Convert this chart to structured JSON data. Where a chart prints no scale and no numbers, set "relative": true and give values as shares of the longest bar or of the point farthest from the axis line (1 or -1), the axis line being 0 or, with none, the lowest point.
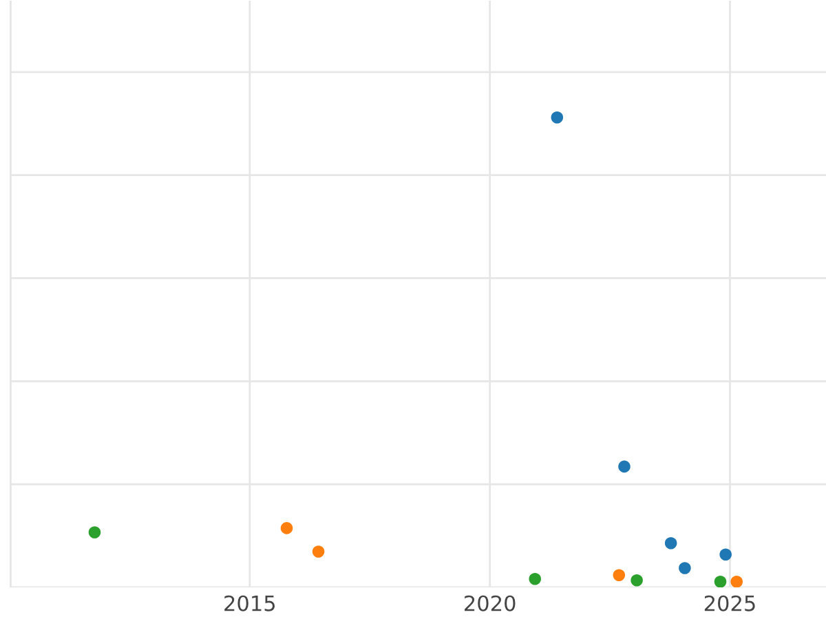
{
  "chart_data": {
    "type": "scatter",
    "relative": true,
    "xlim": [
      2010,
      2027
    ],
    "xticks": [
      2015,
      2020,
      2025
    ],
    "grid": true,
    "marker": "circle",
    "series": [
      {
        "color": "#1f77b4",
        "x": [
          2021.4,
          2022.8,
          2023.77,
          2024.06,
          2024.91
        ],
        "values": [
          1,
          0.257,
          0.094,
          0.041,
          0.07
        ]
      },
      {
        "color": "#ff7f0e",
        "x": [
          2015.77,
          2016.43,
          2022.69,
          2025.14
        ],
        "values": [
          0.126,
          0.076,
          0.026,
          0.012
        ]
      },
      {
        "color": "#2ca02c",
        "x": [
          2011.77,
          2020.94,
          2023.06,
          2024.8
        ],
        "values": [
          0.117,
          0.018,
          0.015,
          0.012
        ]
      }
    ]
  }
}
